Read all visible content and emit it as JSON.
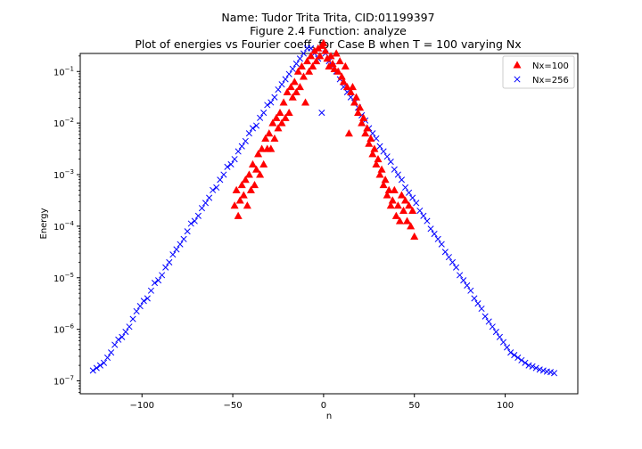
{
  "figure": {
    "title_lines": [
      "Name: Tudor Trita Trita, CID:01199397",
      "Figure 2.4 Function: analyze",
      "Plot of energies vs Fourier coeff. for Case B when T = 100 varying Nx"
    ]
  },
  "chart_data": {
    "type": "scatter",
    "xlabel": "n",
    "ylabel": "Energy",
    "xlim": [
      -134,
      140
    ],
    "ylim_log10": [
      -7.25,
      -0.65
    ],
    "yscale": "log",
    "grid": false,
    "legend_position": "top-right",
    "x_ticks": [
      {
        "value": -100,
        "label": "−100"
      },
      {
        "value": -50,
        "label": "−50"
      },
      {
        "value": 0,
        "label": "0"
      },
      {
        "value": 50,
        "label": "50"
      },
      {
        "value": 100,
        "label": "100"
      }
    ],
    "y_ticks": [
      {
        "exp": -7,
        "base": "10",
        "sup": "−7"
      },
      {
        "exp": -6,
        "base": "10",
        "sup": "−6"
      },
      {
        "exp": -5,
        "base": "10",
        "sup": "−5"
      },
      {
        "exp": -4,
        "base": "10",
        "sup": "−4"
      },
      {
        "exp": -3,
        "base": "10",
        "sup": "−3"
      },
      {
        "exp": -2,
        "base": "10",
        "sup": "−2"
      },
      {
        "exp": -1,
        "base": "10",
        "sup": "−1"
      }
    ],
    "series": [
      {
        "name": "Nx=100",
        "marker": "triangle",
        "color": "#ff0000",
        "points": [
          [
            -49,
            -3.6
          ],
          [
            -48,
            -3.3
          ],
          [
            -47,
            -3.8
          ],
          [
            -46,
            -3.5
          ],
          [
            -45,
            -3.2
          ],
          [
            -44,
            -3.4
          ],
          [
            -43,
            -3.1
          ],
          [
            -42,
            -3.6
          ],
          [
            -41,
            -3.0
          ],
          [
            -40,
            -3.3
          ],
          [
            -39,
            -2.8
          ],
          [
            -38,
            -3.2
          ],
          [
            -37,
            -2.9
          ],
          [
            -36,
            -2.6
          ],
          [
            -35,
            -3.0
          ],
          [
            -34,
            -2.5
          ],
          [
            -33,
            -2.8
          ],
          [
            -32,
            -2.3
          ],
          [
            -31,
            -2.5
          ],
          [
            -30,
            -2.2
          ],
          [
            -29,
            -2.5
          ],
          [
            -28,
            -2.0
          ],
          [
            -27,
            -2.3
          ],
          [
            -26,
            -1.9
          ],
          [
            -25,
            -2.1
          ],
          [
            -24,
            -1.8
          ],
          [
            -23,
            -2.0
          ],
          [
            -22,
            -1.6
          ],
          [
            -21,
            -1.9
          ],
          [
            -20,
            -1.4
          ],
          [
            -19,
            -1.8
          ],
          [
            -18,
            -1.3
          ],
          [
            -17,
            -1.5
          ],
          [
            -16,
            -1.2
          ],
          [
            -15,
            -1.4
          ],
          [
            -14,
            -1.0
          ],
          [
            -13,
            -1.3
          ],
          [
            -12,
            -0.9
          ],
          [
            -11,
            -1.1
          ],
          [
            -10,
            -1.6
          ],
          [
            -9,
            -0.8
          ],
          [
            -8,
            -1.0
          ],
          [
            -7,
            -0.7
          ],
          [
            -6,
            -0.9
          ],
          [
            -5,
            -0.6
          ],
          [
            -4,
            -0.8
          ],
          [
            -3,
            -0.55
          ],
          [
            -2,
            -0.7
          ],
          [
            -1,
            -0.5
          ],
          [
            0,
            -0.45
          ],
          [
            1,
            -0.6
          ],
          [
            2,
            -0.75
          ],
          [
            3,
            -0.9
          ],
          [
            4,
            -0.7
          ],
          [
            5,
            -0.85
          ],
          [
            6,
            -0.95
          ],
          [
            7,
            -0.65
          ],
          [
            8,
            -1.0
          ],
          [
            9,
            -0.8
          ],
          [
            10,
            -1.1
          ],
          [
            11,
            -1.2
          ],
          [
            12,
            -0.9
          ],
          [
            13,
            -1.3
          ],
          [
            14,
            -2.2
          ],
          [
            15,
            -1.4
          ],
          [
            16,
            -1.3
          ],
          [
            17,
            -1.6
          ],
          [
            18,
            -1.5
          ],
          [
            19,
            -1.8
          ],
          [
            20,
            -1.7
          ],
          [
            21,
            -2.0
          ],
          [
            22,
            -1.9
          ],
          [
            23,
            -2.2
          ],
          [
            24,
            -2.1
          ],
          [
            25,
            -2.4
          ],
          [
            26,
            -2.3
          ],
          [
            27,
            -2.6
          ],
          [
            28,
            -2.5
          ],
          [
            29,
            -2.8
          ],
          [
            30,
            -2.7
          ],
          [
            31,
            -3.0
          ],
          [
            32,
            -2.9
          ],
          [
            33,
            -3.2
          ],
          [
            34,
            -3.1
          ],
          [
            35,
            -3.4
          ],
          [
            36,
            -3.3
          ],
          [
            37,
            -3.6
          ],
          [
            38,
            -3.5
          ],
          [
            39,
            -3.3
          ],
          [
            40,
            -3.8
          ],
          [
            41,
            -3.6
          ],
          [
            42,
            -3.9
          ],
          [
            43,
            -3.4
          ],
          [
            44,
            -3.7
          ],
          [
            45,
            -3.5
          ],
          [
            46,
            -3.9
          ],
          [
            47,
            -3.6
          ],
          [
            48,
            -4.0
          ],
          [
            49,
            -3.7
          ],
          [
            50,
            -4.2
          ]
        ]
      },
      {
        "name": "Nx=256",
        "marker": "x",
        "color": "#0000ff",
        "points": [
          [
            -127,
            -6.8
          ],
          [
            -125,
            -6.75
          ],
          [
            -123,
            -6.7
          ],
          [
            -121,
            -6.65
          ],
          [
            -119,
            -6.55
          ],
          [
            -117,
            -6.45
          ],
          [
            -115,
            -6.3
          ],
          [
            -113,
            -6.2
          ],
          [
            -111,
            -6.15
          ],
          [
            -109,
            -6.05
          ],
          [
            -107,
            -5.95
          ],
          [
            -105,
            -5.8
          ],
          [
            -103,
            -5.65
          ],
          [
            -101,
            -5.55
          ],
          [
            -99,
            -5.45
          ],
          [
            -97,
            -5.4
          ],
          [
            -95,
            -5.25
          ],
          [
            -93,
            -5.1
          ],
          [
            -91,
            -5.05
          ],
          [
            -89,
            -4.95
          ],
          [
            -87,
            -4.8
          ],
          [
            -85,
            -4.7
          ],
          [
            -83,
            -4.55
          ],
          [
            -81,
            -4.45
          ],
          [
            -79,
            -4.35
          ],
          [
            -77,
            -4.25
          ],
          [
            -75,
            -4.1
          ],
          [
            -73,
            -3.95
          ],
          [
            -71,
            -3.9
          ],
          [
            -69,
            -3.8
          ],
          [
            -67,
            -3.65
          ],
          [
            -65,
            -3.55
          ],
          [
            -63,
            -3.45
          ],
          [
            -61,
            -3.3
          ],
          [
            -59,
            -3.25
          ],
          [
            -57,
            -3.1
          ],
          [
            -55,
            -3.0
          ],
          [
            -53,
            -2.85
          ],
          [
            -51,
            -2.8
          ],
          [
            -49,
            -2.7
          ],
          [
            -47,
            -2.55
          ],
          [
            -45,
            -2.45
          ],
          [
            -43,
            -2.35
          ],
          [
            -41,
            -2.2
          ],
          [
            -39,
            -2.1
          ],
          [
            -37,
            -2.05
          ],
          [
            -35,
            -1.9
          ],
          [
            -33,
            -1.8
          ],
          [
            -31,
            -1.65
          ],
          [
            -29,
            -1.6
          ],
          [
            -27,
            -1.5
          ],
          [
            -25,
            -1.35
          ],
          [
            -23,
            -1.25
          ],
          [
            -21,
            -1.15
          ],
          [
            -19,
            -1.05
          ],
          [
            -17,
            -0.95
          ],
          [
            -15,
            -0.85
          ],
          [
            -13,
            -0.75
          ],
          [
            -11,
            -0.65
          ],
          [
            -9,
            -0.55
          ],
          [
            -7,
            -0.55
          ],
          [
            -5,
            -0.65
          ],
          [
            -3,
            -0.75
          ],
          [
            -1,
            -1.8
          ],
          [
            1,
            -0.65
          ],
          [
            3,
            -0.8
          ],
          [
            5,
            -0.9
          ],
          [
            7,
            -1.0
          ],
          [
            9,
            -1.15
          ],
          [
            11,
            -1.3
          ],
          [
            13,
            -1.4
          ],
          [
            15,
            -1.5
          ],
          [
            17,
            -1.6
          ],
          [
            19,
            -1.7
          ],
          [
            21,
            -1.85
          ],
          [
            23,
            -1.95
          ],
          [
            25,
            -2.1
          ],
          [
            27,
            -2.2
          ],
          [
            29,
            -2.3
          ],
          [
            31,
            -2.45
          ],
          [
            33,
            -2.55
          ],
          [
            35,
            -2.65
          ],
          [
            37,
            -2.75
          ],
          [
            39,
            -2.9
          ],
          [
            41,
            -3.0
          ],
          [
            43,
            -3.1
          ],
          [
            45,
            -3.25
          ],
          [
            47,
            -3.35
          ],
          [
            49,
            -3.45
          ],
          [
            51,
            -3.55
          ],
          [
            53,
            -3.7
          ],
          [
            55,
            -3.8
          ],
          [
            57,
            -3.9
          ],
          [
            59,
            -4.05
          ],
          [
            61,
            -4.15
          ],
          [
            63,
            -4.25
          ],
          [
            65,
            -4.35
          ],
          [
            67,
            -4.5
          ],
          [
            69,
            -4.6
          ],
          [
            71,
            -4.7
          ],
          [
            73,
            -4.8
          ],
          [
            75,
            -4.95
          ],
          [
            77,
            -5.05
          ],
          [
            79,
            -5.15
          ],
          [
            81,
            -5.25
          ],
          [
            83,
            -5.4
          ],
          [
            85,
            -5.5
          ],
          [
            87,
            -5.6
          ],
          [
            89,
            -5.75
          ],
          [
            91,
            -5.85
          ],
          [
            93,
            -5.95
          ],
          [
            95,
            -6.05
          ],
          [
            97,
            -6.15
          ],
          [
            99,
            -6.25
          ],
          [
            101,
            -6.35
          ],
          [
            103,
            -6.45
          ],
          [
            105,
            -6.5
          ],
          [
            107,
            -6.55
          ],
          [
            109,
            -6.6
          ],
          [
            111,
            -6.65
          ],
          [
            113,
            -6.7
          ],
          [
            115,
            -6.72
          ],
          [
            117,
            -6.75
          ],
          [
            119,
            -6.78
          ],
          [
            121,
            -6.8
          ],
          [
            123,
            -6.82
          ],
          [
            125,
            -6.83
          ],
          [
            127,
            -6.85
          ]
        ]
      }
    ]
  }
}
